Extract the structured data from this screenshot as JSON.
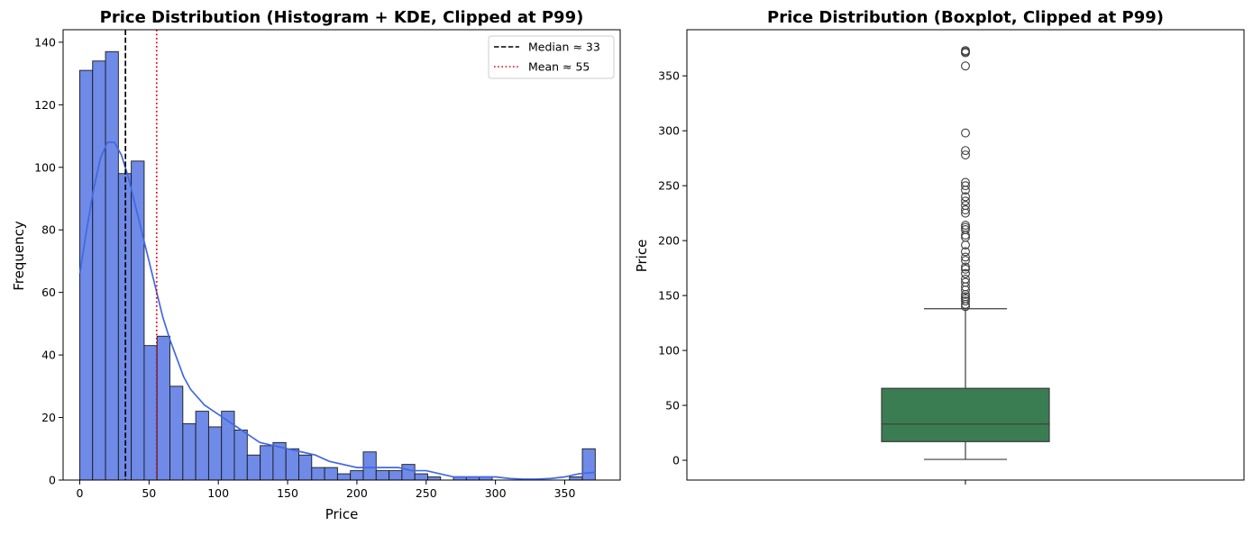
{
  "chart_data": [
    {
      "type": "bar",
      "subtype": "histogram+kde",
      "title": "Price Distribution (Histogram + KDE, Clipped at P99)",
      "xlabel": "Price",
      "ylabel": "Frequency",
      "xlim": [
        -12,
        390
      ],
      "ylim": [
        0,
        144
      ],
      "xticks": [
        0,
        50,
        100,
        150,
        200,
        250,
        300,
        350
      ],
      "yticks": [
        0,
        20,
        40,
        60,
        80,
        100,
        120,
        140
      ],
      "bin_width": 9.3,
      "bin_start": 0,
      "values": [
        131,
        134,
        137,
        98,
        102,
        43,
        46,
        30,
        18,
        22,
        17,
        22,
        16,
        8,
        11,
        12,
        10,
        8,
        4,
        4,
        2,
        3,
        9,
        3,
        3,
        5,
        2,
        1,
        0,
        1,
        1,
        1,
        0,
        0,
        0,
        0,
        0,
        0,
        1,
        10
      ],
      "kde": {
        "x": [
          0,
          5,
          10,
          15,
          20,
          25,
          30,
          35,
          40,
          45,
          50,
          55,
          60,
          65,
          70,
          75,
          80,
          90,
          100,
          110,
          120,
          130,
          140,
          150,
          160,
          170,
          180,
          190,
          200,
          210,
          220,
          230,
          240,
          250,
          260,
          270,
          280,
          290,
          300,
          310,
          320,
          330,
          340,
          350,
          360,
          372
        ],
        "y": [
          66,
          80,
          93,
          103,
          108,
          108,
          104,
          97,
          88,
          79,
          70,
          61,
          52,
          45,
          39,
          33,
          29,
          24,
          21,
          18,
          15,
          12,
          11,
          10,
          9,
          8,
          6,
          5,
          4,
          4,
          4,
          4,
          3,
          3,
          2,
          1,
          1,
          1,
          1,
          0.5,
          0.3,
          0.3,
          0.5,
          1,
          2,
          2.5
        ]
      },
      "lines": [
        {
          "name": "Median ≈ 33",
          "x": 33,
          "style": "dashed",
          "color": "#000000"
        },
        {
          "name": "Mean ≈ 55",
          "x": 55.5,
          "style": "dotted",
          "color": "#e4000f"
        }
      ],
      "colors": {
        "bar": "#6f8ae7",
        "bar_edge": "#1a1a1a",
        "kde": "#4169e1"
      },
      "legend_position": "top-right",
      "grid": false
    },
    {
      "type": "boxplot",
      "title": "Price Distribution (Boxplot, Clipped at P99)",
      "xlabel": "",
      "ylabel": "Price",
      "ylim": [
        -18,
        392
      ],
      "yticks": [
        0,
        50,
        100,
        150,
        200,
        250,
        300,
        350
      ],
      "box": {
        "min": 0.8,
        "q1": 17,
        "median": 33,
        "q3": 65.5,
        "max": 138
      },
      "outliers": [
        140,
        142,
        145,
        147,
        149,
        151,
        155,
        158,
        162,
        165,
        170,
        174,
        176,
        182,
        185,
        190,
        196,
        203,
        205,
        210,
        212,
        214,
        225,
        228,
        232,
        236,
        240,
        246,
        250,
        253,
        278,
        282,
        298,
        359,
        371,
        372,
        373
      ],
      "colors": {
        "box": "#3a7d52",
        "line": "#3c3c3c"
      },
      "grid": false
    }
  ]
}
